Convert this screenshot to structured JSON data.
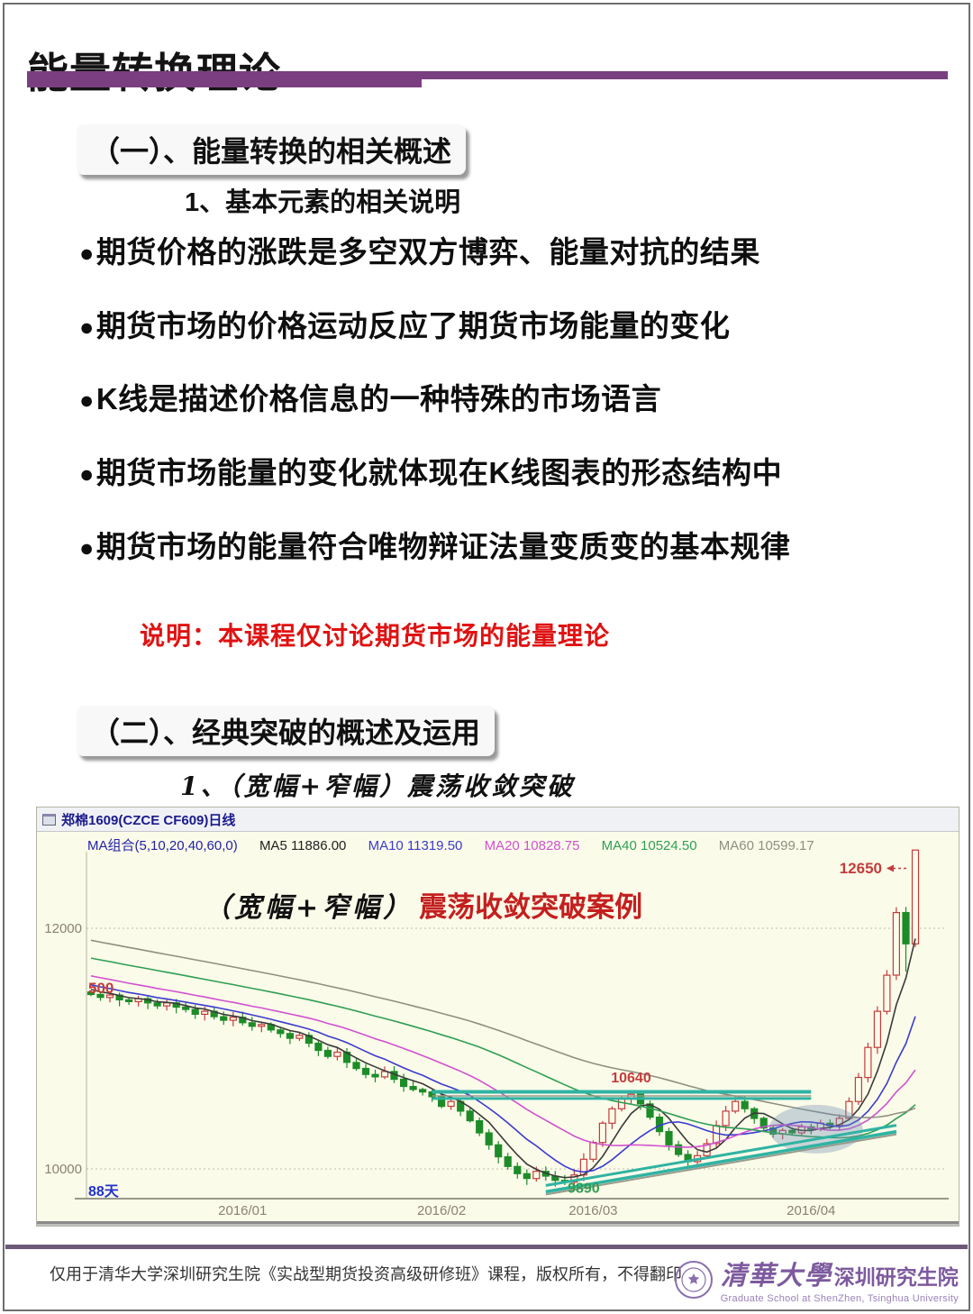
{
  "page": {
    "title": "能量转换理论",
    "accent_color": "#7a3f80"
  },
  "section1": {
    "heading": "（一）、能量转换的相关概述",
    "subheading": "1、基本元素的相关说明",
    "bullet_marker": "●",
    "bullets": [
      "期货价格的涨跌是多空双方博弈、能量对抗的结果",
      "期货市场的价格运动反应了期货市场能量的变化",
      "K线是描述价格信息的一种特殊的市场语言",
      "期货市场能量的变化就体现在K线图表的形态结构中",
      "期货市场的能量符合唯物辩证法量变质变的基本规律"
    ],
    "note": "说明：本课程仅讨论期货市场的能量理论"
  },
  "section2": {
    "heading": "（二）、经典突破的概述及运用",
    "subheading": "1、（宽幅+窄幅）震荡收敛突破"
  },
  "chart": {
    "window_title": "郑棉1609(CZCE CF609)日线",
    "legend": {
      "group": "MA组合(5,10,20,40,60,0)",
      "items": [
        {
          "label": "MA5 11886.00",
          "color": "#222222"
        },
        {
          "label": "MA10 11319.50",
          "color": "#3b3bd0"
        },
        {
          "label": "MA20 10828.75",
          "color": "#d052d0"
        },
        {
          "label": "MA40 10524.50",
          "color": "#2f9e55"
        },
        {
          "label": "MA60 10599.17",
          "color": "#8f8f83"
        }
      ]
    },
    "inline_title": {
      "black": "（宽幅+窄幅）",
      "red": "震荡收敛突破案例"
    }
  },
  "chart_data": {
    "type": "candlestick",
    "title": "郑棉1609(CZCE CF609)日线",
    "x_ticks": [
      {
        "label": "2016/01",
        "day": 17
      },
      {
        "label": "2016/02",
        "day": 38
      },
      {
        "label": "2016/03",
        "day": 54
      },
      {
        "label": "2016/04",
        "day": 77
      }
    ],
    "y_axis_labels": [
      "12000",
      "10000"
    ],
    "gridlines": [
      12000,
      10000
    ],
    "ylim": [
      9750,
      12700
    ],
    "ma_values": {
      "MA5": 11886.0,
      "MA10": 11319.5,
      "MA20": 10828.75,
      "MA40": 10524.5,
      "MA60": 10599.17
    },
    "annotations": {
      "high": {
        "text": "12650",
        "day": 88,
        "price": 12650,
        "color": "#c43c3c"
      },
      "resistance": {
        "text": "10640",
        "day": 58,
        "price": 10720,
        "color": "#c43c3c"
      },
      "low": {
        "text": "9890",
        "day": 53,
        "price": 9800,
        "color": "#2f9e50"
      },
      "left_edge": {
        "text": "500",
        "price": 11500,
        "color": "#c43c3c"
      },
      "days_count": {
        "text": "88天",
        "color": "#2233cc"
      }
    },
    "overlays": {
      "resistance_band": {
        "from_day": 37,
        "to_day": 77,
        "price_top": 10640,
        "price_bottom": 10585,
        "color": "#2fb3a3"
      },
      "support_channel": {
        "from_day": 49,
        "from_price": 9810,
        "to_day": 86,
        "to_price": 10310,
        "color": "#2fb3a3"
      },
      "ellipse_highlight": {
        "day": 77.5,
        "price": 10330,
        "color": "rgba(110,140,180,0.35)"
      }
    },
    "approx_closes": [
      11450,
      11425,
      11445,
      11405,
      11390,
      11415,
      11380,
      11355,
      11380,
      11345,
      11325,
      11285,
      11310,
      11265,
      11235,
      11260,
      11215,
      11185,
      11200,
      11155,
      11125,
      11085,
      11110,
      11045,
      10985,
      10935,
      10970,
      10885,
      10835,
      10785,
      10765,
      10810,
      10745,
      10685,
      10660,
      10640,
      10600,
      10520,
      10560,
      10480,
      10400,
      10300,
      10200,
      10100,
      10020,
      9960,
      9920,
      9980,
      9940,
      9905,
      9890,
      9950,
      10080,
      10220,
      10380,
      10500,
      10580,
      10620,
      10540,
      10430,
      10310,
      10200,
      10120,
      10060,
      10110,
      10210,
      10360,
      10480,
      10560,
      10500,
      10420,
      10340,
      10290,
      10320,
      10300,
      10350,
      10330,
      10380,
      10360,
      10420,
      10560,
      10760,
      11010,
      11310,
      11610,
      12130,
      11870,
      12650
    ],
    "ma_prehistory": {
      "start": 12350,
      "end": 11480,
      "count": 60
    },
    "ma_lines": [
      {
        "period": 5,
        "color": "#3a3a3a"
      },
      {
        "period": 10,
        "color": "#3b3bd0"
      },
      {
        "period": 20,
        "color": "#d052d0"
      },
      {
        "period": 40,
        "color": "#2f9e55"
      },
      {
        "period": 60,
        "color": "#8f8f83"
      }
    ]
  },
  "footer": {
    "text": "仅用于清华大学深圳研究生院《实战型期货投资高级研修班》课程，版权所有，不得翻印",
    "logo": {
      "cn_calligraphy": "清華大學",
      "cn_name": "深圳研究生院",
      "english": "Graduate School at ShenZhen, Tsinghua University"
    }
  }
}
